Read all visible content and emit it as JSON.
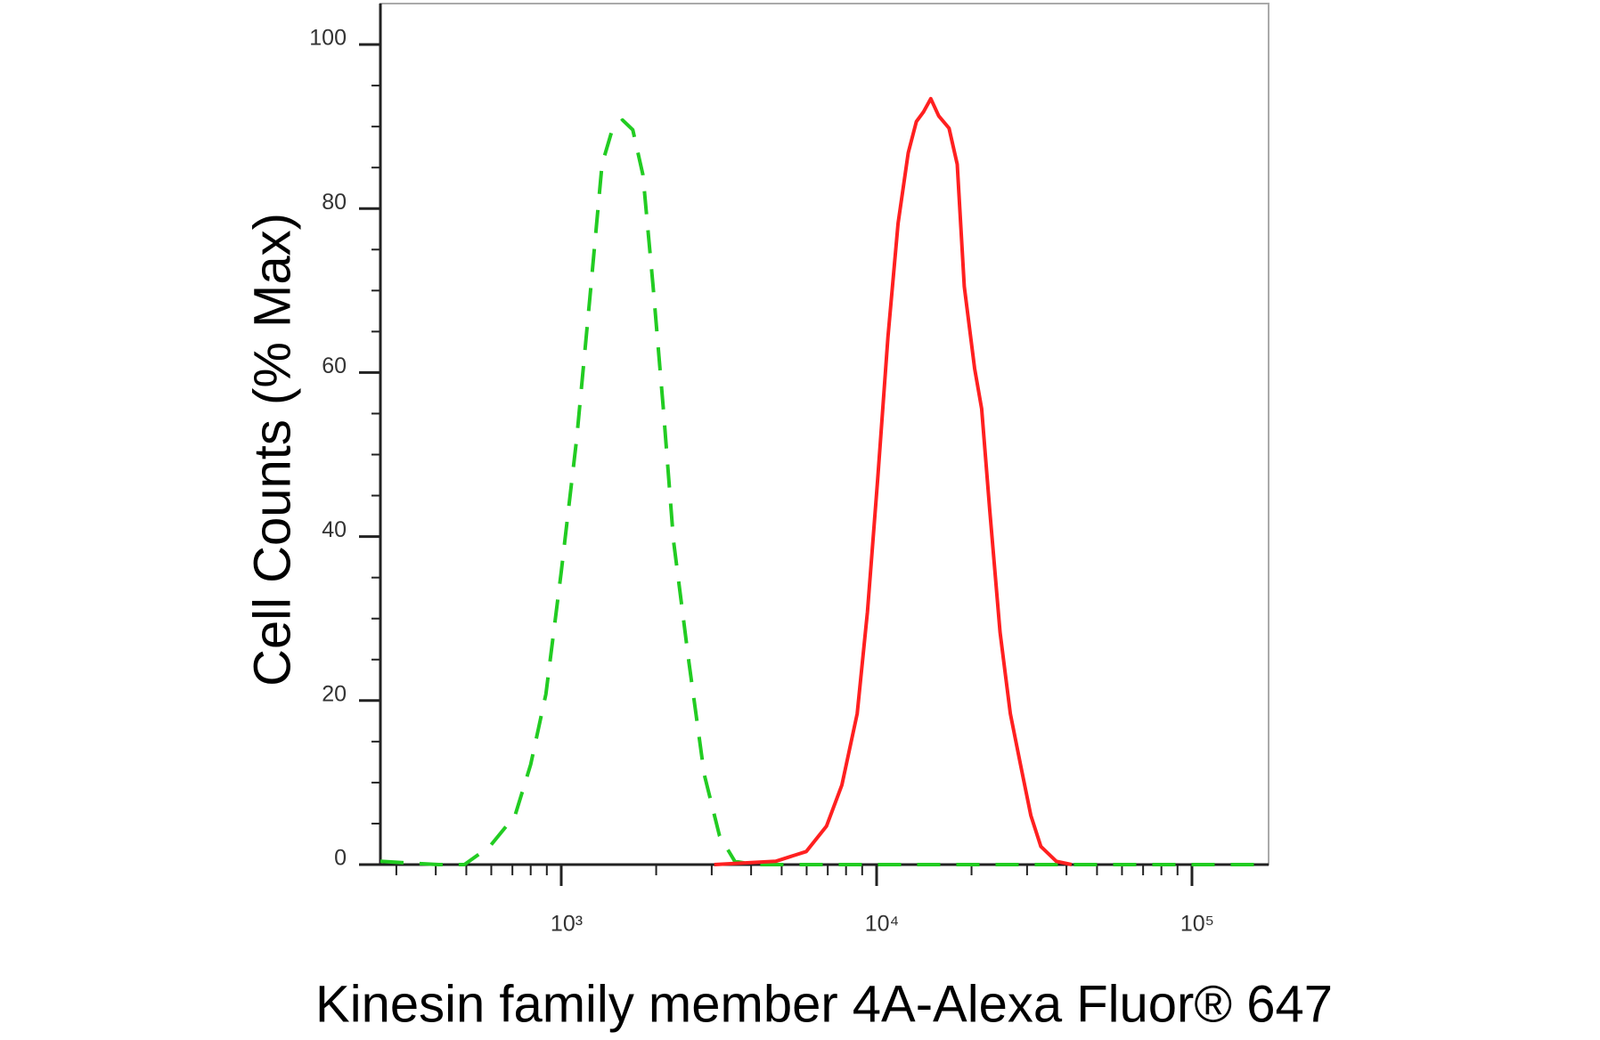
{
  "chart_data": {
    "type": "line",
    "xlabel": "Kinesin family member 4A-Alexa Fluor® 647",
    "ylabel": "Cell Counts (% Max)",
    "xscale": "log",
    "xlim": [
      267,
      175000
    ],
    "ylim": [
      0,
      105
    ],
    "xticks": [
      {
        "value": 1000,
        "label": "10³"
      },
      {
        "value": 10000,
        "label": "10⁴"
      },
      {
        "value": 100000,
        "label": "10⁵"
      }
    ],
    "x_minor_ticks": [
      300,
      400,
      500,
      600,
      700,
      800,
      900,
      2000,
      3000,
      4000,
      5000,
      6000,
      7000,
      8000,
      9000,
      20000,
      30000,
      40000,
      50000,
      60000,
      70000,
      80000,
      90000
    ],
    "yticks": [
      0,
      20,
      40,
      60,
      80,
      100
    ],
    "y_minor_ticks": [
      5,
      10,
      15,
      25,
      30,
      35,
      45,
      50,
      55,
      65,
      70,
      75,
      85,
      90,
      95
    ],
    "series": [
      {
        "color": "#22cc22",
        "line_style": "dashed",
        "x": [
          267,
          327,
          409,
          493,
          593,
          714,
          800,
          894,
          1000,
          1119,
          1233,
          1347,
          1451,
          1564,
          1686,
          1816,
          1955,
          2107,
          2270,
          2541,
          2840,
          3176,
          3550,
          4121,
          175000
        ],
        "values": [
          0.4,
          0.2,
          0,
          0,
          2.2,
          6.0,
          12.2,
          20.8,
          35.7,
          51.9,
          69.2,
          85.4,
          89.6,
          90.8,
          89.6,
          84.1,
          70.5,
          55.6,
          39.5,
          24.6,
          11.0,
          3.5,
          0.4,
          0,
          0
        ]
      },
      {
        "color": "#ff2020",
        "line_style": "solid",
        "x": [
          3055,
          4786,
          5986,
          6939,
          7762,
          8680,
          9355,
          10077,
          10860,
          11700,
          12600,
          13370,
          14090,
          14850,
          15740,
          16970,
          18020,
          18970,
          20460,
          21530,
          22850,
          24640,
          26550,
          28600,
          30830,
          33190,
          37150,
          41530
        ],
        "values": [
          0,
          0.4,
          1.6,
          4.7,
          9.7,
          18.4,
          30.8,
          47.0,
          64.3,
          78.2,
          86.8,
          90.6,
          91.8,
          93.4,
          91.3,
          89.8,
          85.4,
          70.5,
          60.5,
          55.6,
          43.2,
          28.3,
          18.4,
          12.2,
          6.0,
          2.2,
          0.4,
          0
        ]
      }
    ]
  }
}
